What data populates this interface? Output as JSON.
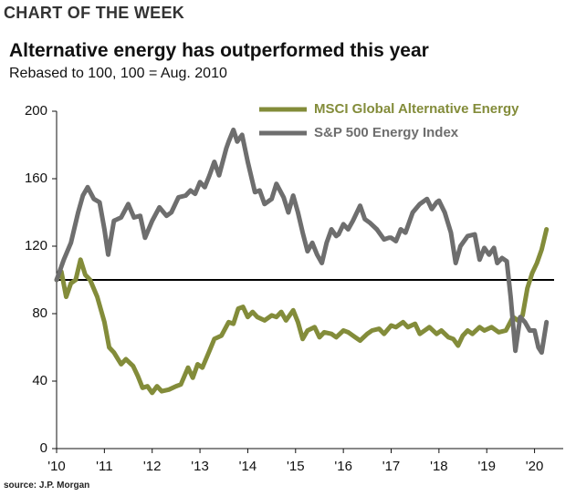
{
  "kicker": "CHART OF THE WEEK",
  "source": "source: J.P. Morgan",
  "chart_data": {
    "type": "line",
    "title": "Alternative energy has outperformed this year",
    "subtitle": "Rebased to 100, 100 = Aug. 2010",
    "xlim": [
      2010,
      2020.6
    ],
    "xticks": [
      {
        "value": 2010,
        "label": "'10"
      },
      {
        "value": 2011,
        "label": "'11"
      },
      {
        "value": 2012,
        "label": "'12"
      },
      {
        "value": 2013,
        "label": "'13"
      },
      {
        "value": 2014,
        "label": "'14"
      },
      {
        "value": 2015,
        "label": "'15"
      },
      {
        "value": 2016,
        "label": "'16"
      },
      {
        "value": 2017,
        "label": "'17"
      },
      {
        "value": 2018,
        "label": "'18"
      },
      {
        "value": 2019,
        "label": "'19"
      },
      {
        "value": 2020,
        "label": "'20"
      }
    ],
    "ylim": [
      0,
      200
    ],
    "yticks": [
      0,
      40,
      80,
      120,
      160,
      200
    ],
    "reference_line": 100,
    "legend": "top-right",
    "series": [
      {
        "name": "MSCI Global Alternative Energy",
        "color": "#838c3a",
        "x": [
          2010.0,
          2010.1,
          2010.2,
          2010.3,
          2010.4,
          2010.5,
          2010.6,
          2010.7,
          2010.85,
          2011.0,
          2011.1,
          2011.2,
          2011.35,
          2011.45,
          2011.6,
          2011.7,
          2011.8,
          2011.9,
          2012.0,
          2012.1,
          2012.2,
          2012.35,
          2012.5,
          2012.6,
          2012.75,
          2012.85,
          2012.95,
          2013.05,
          2013.2,
          2013.3,
          2013.45,
          2013.6,
          2013.7,
          2013.8,
          2013.9,
          2014.0,
          2014.1,
          2014.2,
          2014.35,
          2014.5,
          2014.6,
          2014.7,
          2014.8,
          2014.95,
          2015.05,
          2015.15,
          2015.25,
          2015.4,
          2015.5,
          2015.6,
          2015.75,
          2015.85,
          2016.0,
          2016.1,
          2016.25,
          2016.35,
          2016.5,
          2016.6,
          2016.75,
          2016.85,
          2017.0,
          2017.1,
          2017.25,
          2017.35,
          2017.5,
          2017.6,
          2017.7,
          2017.8,
          2017.95,
          2018.05,
          2018.2,
          2018.3,
          2018.4,
          2018.5,
          2018.6,
          2018.7,
          2018.85,
          2018.95,
          2019.1,
          2019.25,
          2019.4,
          2019.55,
          2019.65,
          2019.75,
          2019.85,
          2019.95,
          2020.05,
          2020.15,
          2020.25
        ],
        "values": [
          100,
          105,
          90,
          98,
          100,
          112,
          103,
          100,
          90,
          75,
          60,
          57,
          50,
          53,
          49,
          43,
          36,
          37,
          33,
          37,
          34,
          35,
          37,
          38,
          48,
          42,
          50,
          48,
          58,
          65,
          67,
          75,
          74,
          83,
          84,
          78,
          81,
          78,
          76,
          79,
          78,
          81,
          76,
          82,
          75,
          65,
          70,
          72,
          66,
          69,
          68,
          66,
          70,
          69,
          66,
          64,
          68,
          70,
          71,
          68,
          73,
          72,
          75,
          72,
          74,
          68,
          70,
          72,
          68,
          70,
          66,
          65,
          61,
          67,
          70,
          68,
          72,
          70,
          72,
          69,
          70,
          78,
          76,
          79,
          95,
          104,
          110,
          118,
          130
        ]
      },
      {
        "name": "S&P 500 Energy Index",
        "color": "#6e6e6e",
        "x": [
          2010.0,
          2010.15,
          2010.3,
          2010.45,
          2010.55,
          2010.65,
          2010.78,
          2010.9,
          2011.0,
          2011.08,
          2011.2,
          2011.35,
          2011.5,
          2011.62,
          2011.75,
          2011.85,
          2012.0,
          2012.15,
          2012.3,
          2012.4,
          2012.55,
          2012.7,
          2012.8,
          2012.9,
          2013.0,
          2013.1,
          2013.2,
          2013.3,
          2013.4,
          2013.55,
          2013.6,
          2013.7,
          2013.78,
          2013.88,
          2014.0,
          2014.15,
          2014.25,
          2014.35,
          2014.5,
          2014.6,
          2014.75,
          2014.85,
          2014.95,
          2015.05,
          2015.15,
          2015.25,
          2015.35,
          2015.45,
          2015.55,
          2015.65,
          2015.75,
          2015.85,
          2015.9,
          2016.0,
          2016.1,
          2016.2,
          2016.35,
          2016.45,
          2016.55,
          2016.7,
          2016.85,
          2016.95,
          2017.0,
          2017.1,
          2017.2,
          2017.3,
          2017.45,
          2017.6,
          2017.75,
          2017.85,
          2017.95,
          2018.0,
          2018.12,
          2018.25,
          2018.35,
          2018.45,
          2018.6,
          2018.75,
          2018.85,
          2018.95,
          2019.05,
          2019.15,
          2019.22,
          2019.32,
          2019.42,
          2019.5,
          2019.6,
          2019.7,
          2019.8,
          2019.9,
          2020.0,
          2020.08,
          2020.15,
          2020.25
        ],
        "values": [
          100,
          112,
          122,
          140,
          150,
          155,
          148,
          146,
          130,
          115,
          135,
          137,
          145,
          137,
          138,
          125,
          135,
          143,
          138,
          140,
          149,
          150,
          153,
          151,
          158,
          155,
          162,
          170,
          162,
          178,
          182,
          189,
          182,
          186,
          170,
          152,
          153,
          145,
          148,
          157,
          149,
          140,
          150,
          140,
          128,
          117,
          122,
          115,
          110,
          122,
          130,
          126,
          127,
          133,
          130,
          135,
          144,
          136,
          134,
          130,
          124,
          125,
          125,
          123,
          130,
          128,
          140,
          145,
          148,
          142,
          146,
          147,
          140,
          128,
          110,
          120,
          126,
          127,
          112,
          119,
          115,
          119,
          110,
          113,
          111,
          90,
          58,
          78,
          75,
          70,
          70,
          60,
          57,
          75
        ]
      }
    ]
  }
}
